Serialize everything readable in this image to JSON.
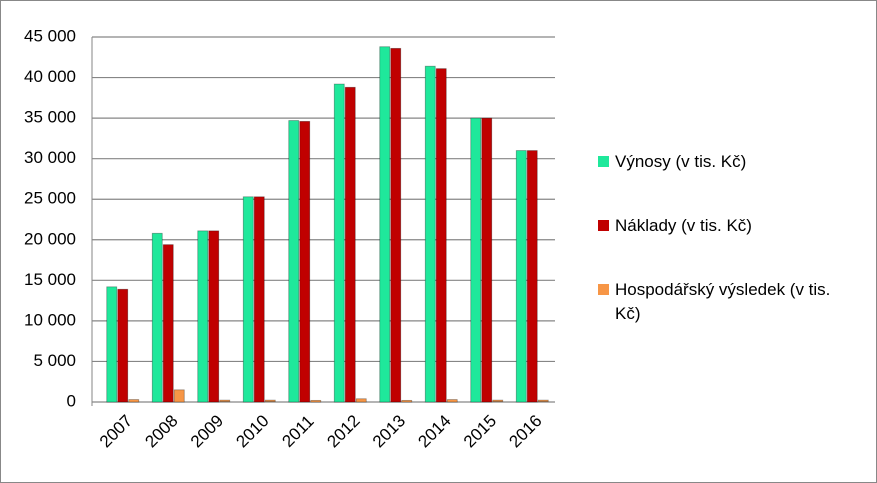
{
  "chart_data": {
    "type": "bar",
    "categories": [
      "2007",
      "2008",
      "2009",
      "2010",
      "2011",
      "2012",
      "2013",
      "2014",
      "2015",
      "2016"
    ],
    "series": [
      {
        "name": "Výnosy (v tis. Kč)",
        "color": "#1fe89b",
        "values": [
          14200,
          20800,
          21100,
          25300,
          34700,
          39200,
          43800,
          41400,
          35000,
          31000
        ]
      },
      {
        "name": "Náklady (v tis. Kč)",
        "color": "#c00000",
        "values": [
          13900,
          19400,
          21100,
          25300,
          34600,
          38800,
          43600,
          41100,
          35000,
          31000
        ]
      },
      {
        "name": "Hospodářský výsledek (v tis. Kč)",
        "color": "#f79646",
        "values": [
          300,
          1500,
          50,
          50,
          200,
          400,
          200,
          300,
          50,
          50
        ]
      }
    ],
    "ylim": [
      0,
      45000
    ],
    "yticks": [
      0,
      {
        "value": 5000,
        "label": "5 000"
      },
      {
        "value": 10000,
        "label": "10 000"
      },
      {
        "value": 15000,
        "label": "15 000"
      },
      {
        "value": 20000,
        "label": "20 000"
      },
      {
        "value": 25000,
        "label": "25 000"
      },
      {
        "value": 30000,
        "label": "30 000"
      },
      {
        "value": 35000,
        "label": "35 000"
      },
      {
        "value": 40000,
        "label": "40 000"
      },
      {
        "value": 45000,
        "label": "45 000"
      }
    ],
    "grid": true,
    "legend": "right"
  }
}
